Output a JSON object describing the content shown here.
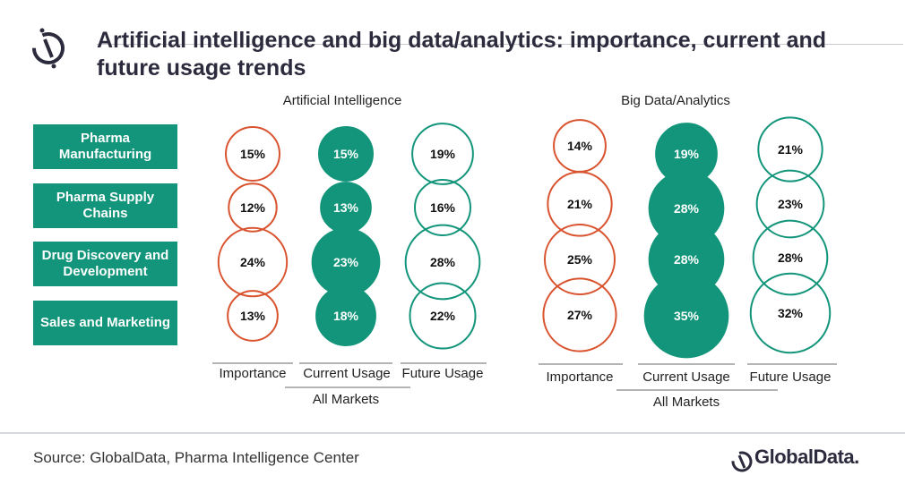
{
  "title": "Artificial intelligence and big data/analytics: importance, current and future usage trends",
  "categories": [
    "Pharma Manufacturing",
    "Pharma Supply Chains",
    "Drug Discovery and Development",
    "Sales and Marketing"
  ],
  "colors": {
    "importance": "#d9532f",
    "current": "#12957a",
    "future": "#12957a",
    "category_box": "#12957a"
  },
  "chart_data": [
    {
      "type": "bubble",
      "title": "Artificial Intelligence",
      "columns": [
        "Importance",
        "Current Usage",
        "Future Usage"
      ],
      "group_label": "All Markets",
      "categories": [
        "Pharma Manufacturing",
        "Pharma Supply Chains",
        "Drug Discovery and Development",
        "Sales and Marketing"
      ],
      "series": [
        {
          "name": "Importance",
          "values": [
            15,
            12,
            24,
            13
          ],
          "style": "outline"
        },
        {
          "name": "Current Usage",
          "values": [
            15,
            13,
            23,
            18
          ],
          "style": "filled"
        },
        {
          "name": "Future Usage",
          "values": [
            19,
            16,
            28,
            22
          ],
          "style": "outline"
        }
      ],
      "unit": "%"
    },
    {
      "type": "bubble",
      "title": "Big Data/Analytics",
      "columns": [
        "Importance",
        "Current Usage",
        "Future Usage"
      ],
      "group_label": "All Markets",
      "categories": [
        "Pharma Manufacturing",
        "Pharma Supply Chains",
        "Drug Discovery and Development",
        "Sales and Marketing"
      ],
      "series": [
        {
          "name": "Importance",
          "values": [
            14,
            21,
            25,
            27
          ],
          "style": "outline"
        },
        {
          "name": "Current Usage",
          "values": [
            19,
            28,
            28,
            35
          ],
          "style": "filled"
        },
        {
          "name": "Future Usage",
          "values": [
            21,
            23,
            28,
            32
          ],
          "style": "outline"
        }
      ],
      "unit": "%"
    }
  ],
  "footer": {
    "source": "Source: GlobalData, Pharma Intelligence Center",
    "brand": "GlobalData."
  }
}
